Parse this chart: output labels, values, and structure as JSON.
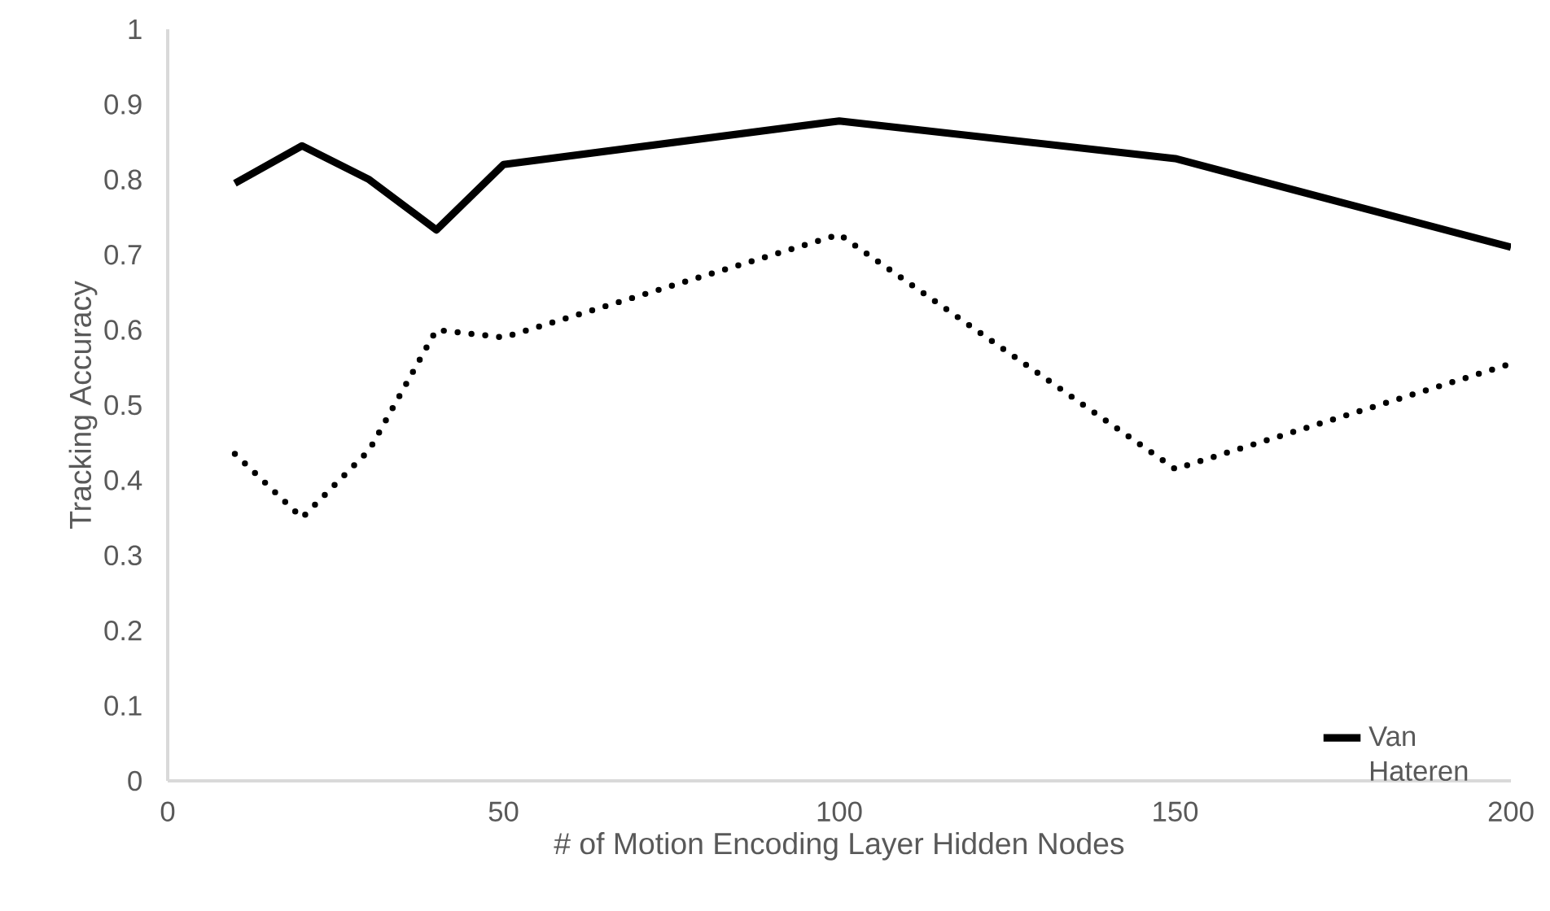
{
  "chart_data": {
    "type": "line",
    "xlabel": "# of Motion Encoding Layer Hidden Nodes",
    "ylabel": "Tracking Accuracy",
    "x": [
      10,
      20,
      30,
      40,
      50,
      100,
      150,
      200
    ],
    "series": [
      {
        "name": "Van Hateren",
        "color": "#000000",
        "line_style": "solid",
        "values": [
          0.795,
          0.845,
          0.8,
          0.733,
          0.82,
          0.878,
          0.828,
          0.71
        ]
      },
      {
        "color": "#000000",
        "line_style": "dotted",
        "values": [
          0.435,
          0.35,
          0.44,
          0.6,
          0.59,
          0.727,
          0.415,
          0.555
        ]
      }
    ],
    "xlim": [
      0,
      200
    ],
    "xticks": [
      0,
      50,
      100,
      150,
      200
    ],
    "ylim": [
      0,
      1
    ],
    "yticks": [
      0,
      0.1,
      0.2,
      0.3,
      0.4,
      0.5,
      0.6,
      0.7,
      0.8,
      0.9,
      1
    ],
    "grid": false,
    "legend": "bottom right",
    "marker": "none"
  }
}
